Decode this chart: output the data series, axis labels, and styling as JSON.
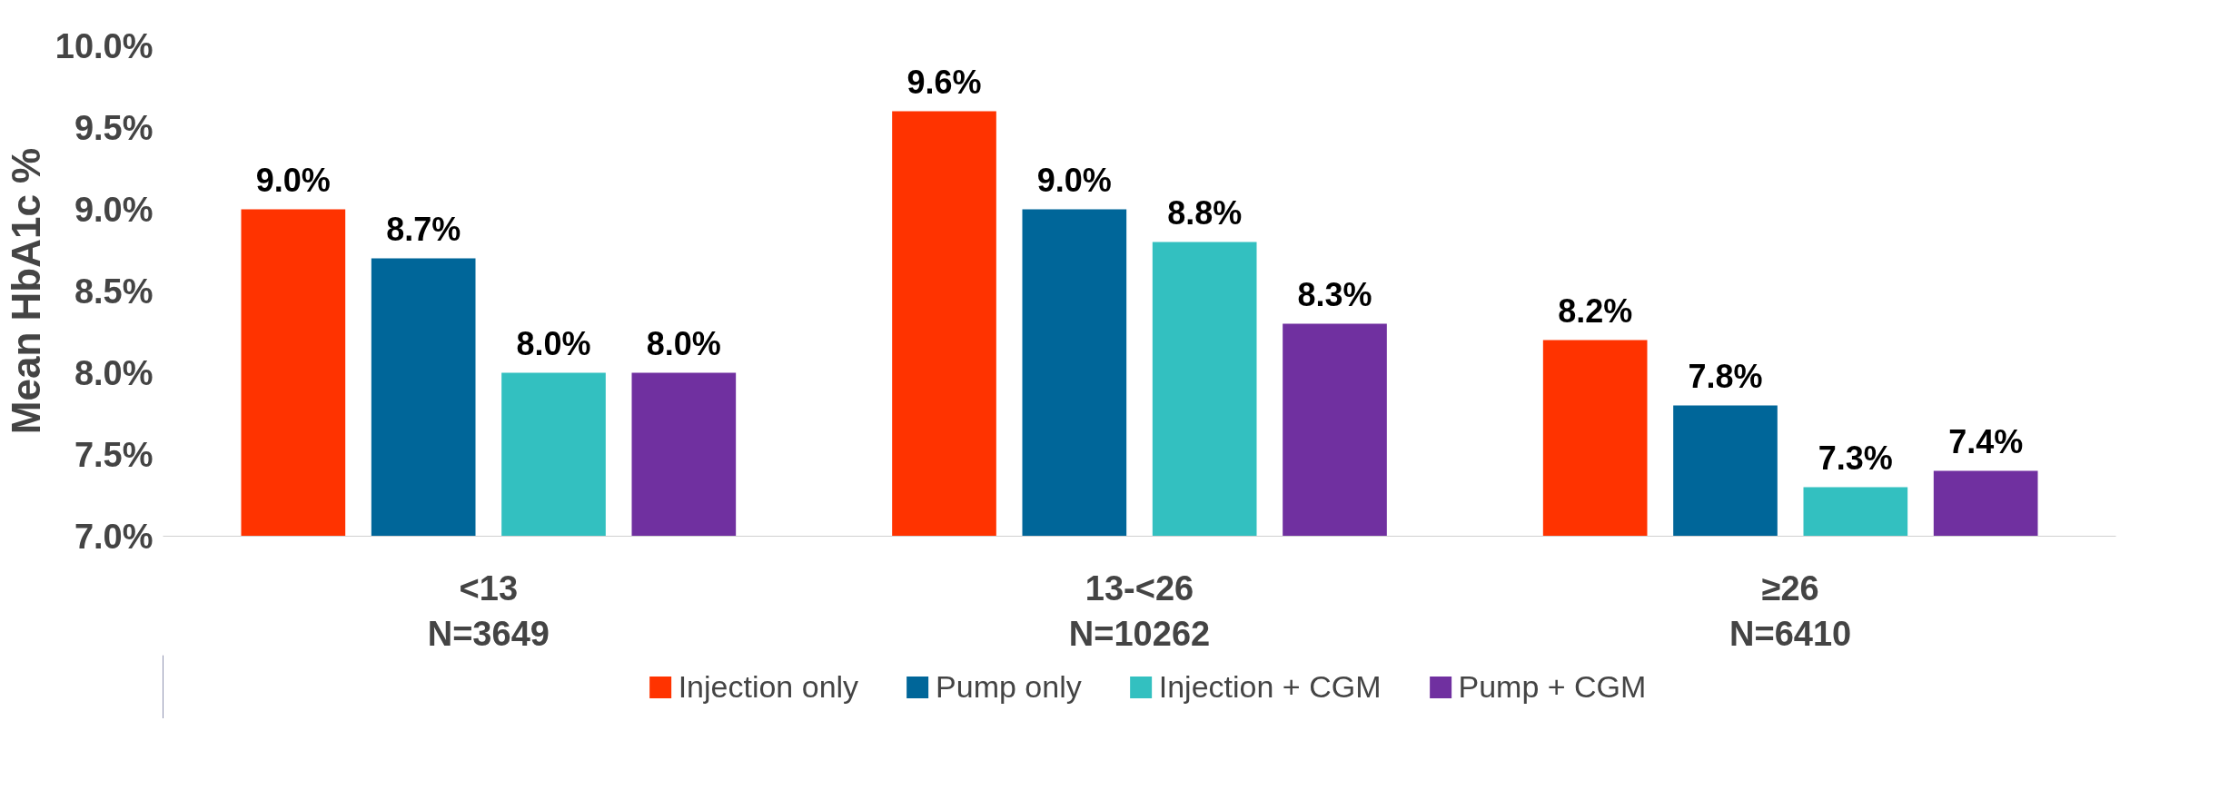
{
  "chart_data": {
    "type": "bar",
    "ylabel": "Mean HbA1c %",
    "categories": [
      "<13\nN=3649",
      "13-<26\nN=10262",
      "≥26\nN=6410"
    ],
    "series": [
      {
        "name": "Injection only",
        "color": "#ff3300",
        "values": [
          9.0,
          9.6,
          8.2
        ],
        "value_labels": [
          "9.0%",
          "9.6%",
          "8.2%"
        ]
      },
      {
        "name": "Pump only",
        "color": "#006699",
        "values": [
          8.7,
          9.0,
          7.8
        ],
        "value_labels": [
          "8.7%",
          "9.0%",
          "7.8%"
        ]
      },
      {
        "name": "Injection + CGM",
        "color": "#33c0c0",
        "values": [
          8.0,
          8.8,
          7.3
        ],
        "value_labels": [
          "8.0%",
          "8.8%",
          "7.3%"
        ]
      },
      {
        "name": "Pump + CGM",
        "color": "#7030a0",
        "values": [
          8.0,
          8.3,
          7.4
        ],
        "value_labels": [
          "8.0%",
          "8.3%",
          "7.4%"
        ]
      }
    ],
    "ylim": [
      7.0,
      10.0
    ],
    "yticks": [
      {
        "value": 7.0,
        "label": "7.0%"
      },
      {
        "value": 7.5,
        "label": "7.5%"
      },
      {
        "value": 8.0,
        "label": "8.0%"
      },
      {
        "value": 8.5,
        "label": "8.5%"
      },
      {
        "value": 9.0,
        "label": "9.0%"
      },
      {
        "value": 9.5,
        "label": "9.5%"
      },
      {
        "value": 10.0,
        "label": "10.0%"
      }
    ],
    "grid": false,
    "legend": "bottom"
  }
}
